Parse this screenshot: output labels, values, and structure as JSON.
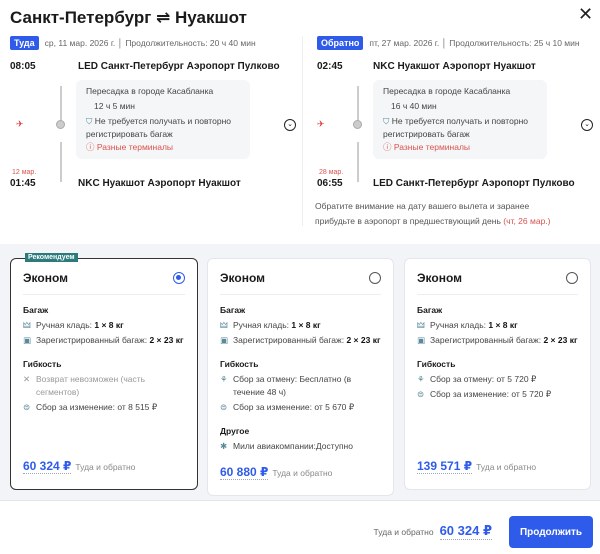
{
  "header": {
    "title": "Санкт-Петербург ⇌ Нуакшот",
    "close_icon": "close-icon"
  },
  "outbound": {
    "badge": "Туда",
    "date": "ср, 11 мар. 2026 г.",
    "duration": "Продолжительность: 20 ч 40 мин",
    "dep_time": "08:05",
    "dep_airport": "LED Санкт-Петербург Аэропорт Пулково",
    "layover_city": "Пересадка в городе Касабланка",
    "layover_time": "12 ч 5 мин",
    "baggage_note": "Не требуется получать и повторно регистрировать багаж",
    "terminal_warning": "Разные терминалы",
    "arr_date": "12 мар.",
    "arr_time": "01:45",
    "arr_airport": "NKC Нуакшот Аэропорт Нуакшот"
  },
  "inbound": {
    "badge": "Обратно",
    "date": "пт, 27 мар. 2026 г.",
    "duration": "Продолжительность: 25 ч 10 мин",
    "dep_time": "02:45",
    "dep_airport": "NKC Нуакшот Аэропорт Нуакшот",
    "layover_city": "Пересадка в городе Касабланка",
    "layover_time": "16 ч 40 мин",
    "baggage_note": "Не требуется получать и повторно регистрировать багаж",
    "terminal_warning": "Разные терминалы",
    "arr_date": "28 мар.",
    "arr_time": "06:55",
    "arr_airport": "LED Санкт-Петербург Аэропорт Пулково",
    "notice": "Обратите внимание на дату вашего вылета и заранее прибудьте в аэропорт в предшествующий день",
    "notice_date": "(чт, 26 мар.)"
  },
  "fares": [
    {
      "badge": "Рекомендуем",
      "title": "Эконом",
      "selected": true,
      "baggage_h": "Багаж",
      "carry": "Ручная кладь:",
      "carry_v": "1 × 8 кг",
      "checked": "Зарегистрированный багаж:",
      "checked_v": "2 × 23 кг",
      "flex_h": "Гибкость",
      "flex1": "Возврат невозможен (часть сегментов)",
      "flex2": "Сбор за изменение: от 8 515 ₽",
      "price": "60 324 ₽",
      "price_label": "Туда и обратно"
    },
    {
      "title": "Эконом",
      "selected": false,
      "baggage_h": "Багаж",
      "carry": "Ручная кладь:",
      "carry_v": "1 × 8 кг",
      "checked": "Зарегистрированный багаж:",
      "checked_v": "2 × 23 кг",
      "flex_h": "Гибкость",
      "flex1": "Сбор за отмену: Бесплатно (в течение 48 ч)",
      "flex2": "Сбор за изменение: от 5 670 ₽",
      "other_h": "Другое",
      "other1": "Мили авиакомпании:Доступно",
      "price": "60 880 ₽",
      "price_label": "Туда и обратно"
    },
    {
      "title": "Эконом",
      "selected": false,
      "baggage_h": "Багаж",
      "carry": "Ручная кладь:",
      "carry_v": "1 × 8 кг",
      "checked": "Зарегистрированный багаж:",
      "checked_v": "2 × 23 кг",
      "flex_h": "Гибкость",
      "flex1": "Сбор за отмену: от 5 720 ₽",
      "flex2": "Сбор за изменение: от 5 720 ₽",
      "price": "139 571 ₽",
      "price_label": "Туда и обратно"
    }
  ],
  "footer": {
    "label": "Туда и обратно",
    "total": "60 324 ₽",
    "continue": "Продолжить"
  },
  "colors": {
    "accent": "#2f5bea",
    "warning": "#d9534f",
    "recommend": "#2c7a7b"
  }
}
